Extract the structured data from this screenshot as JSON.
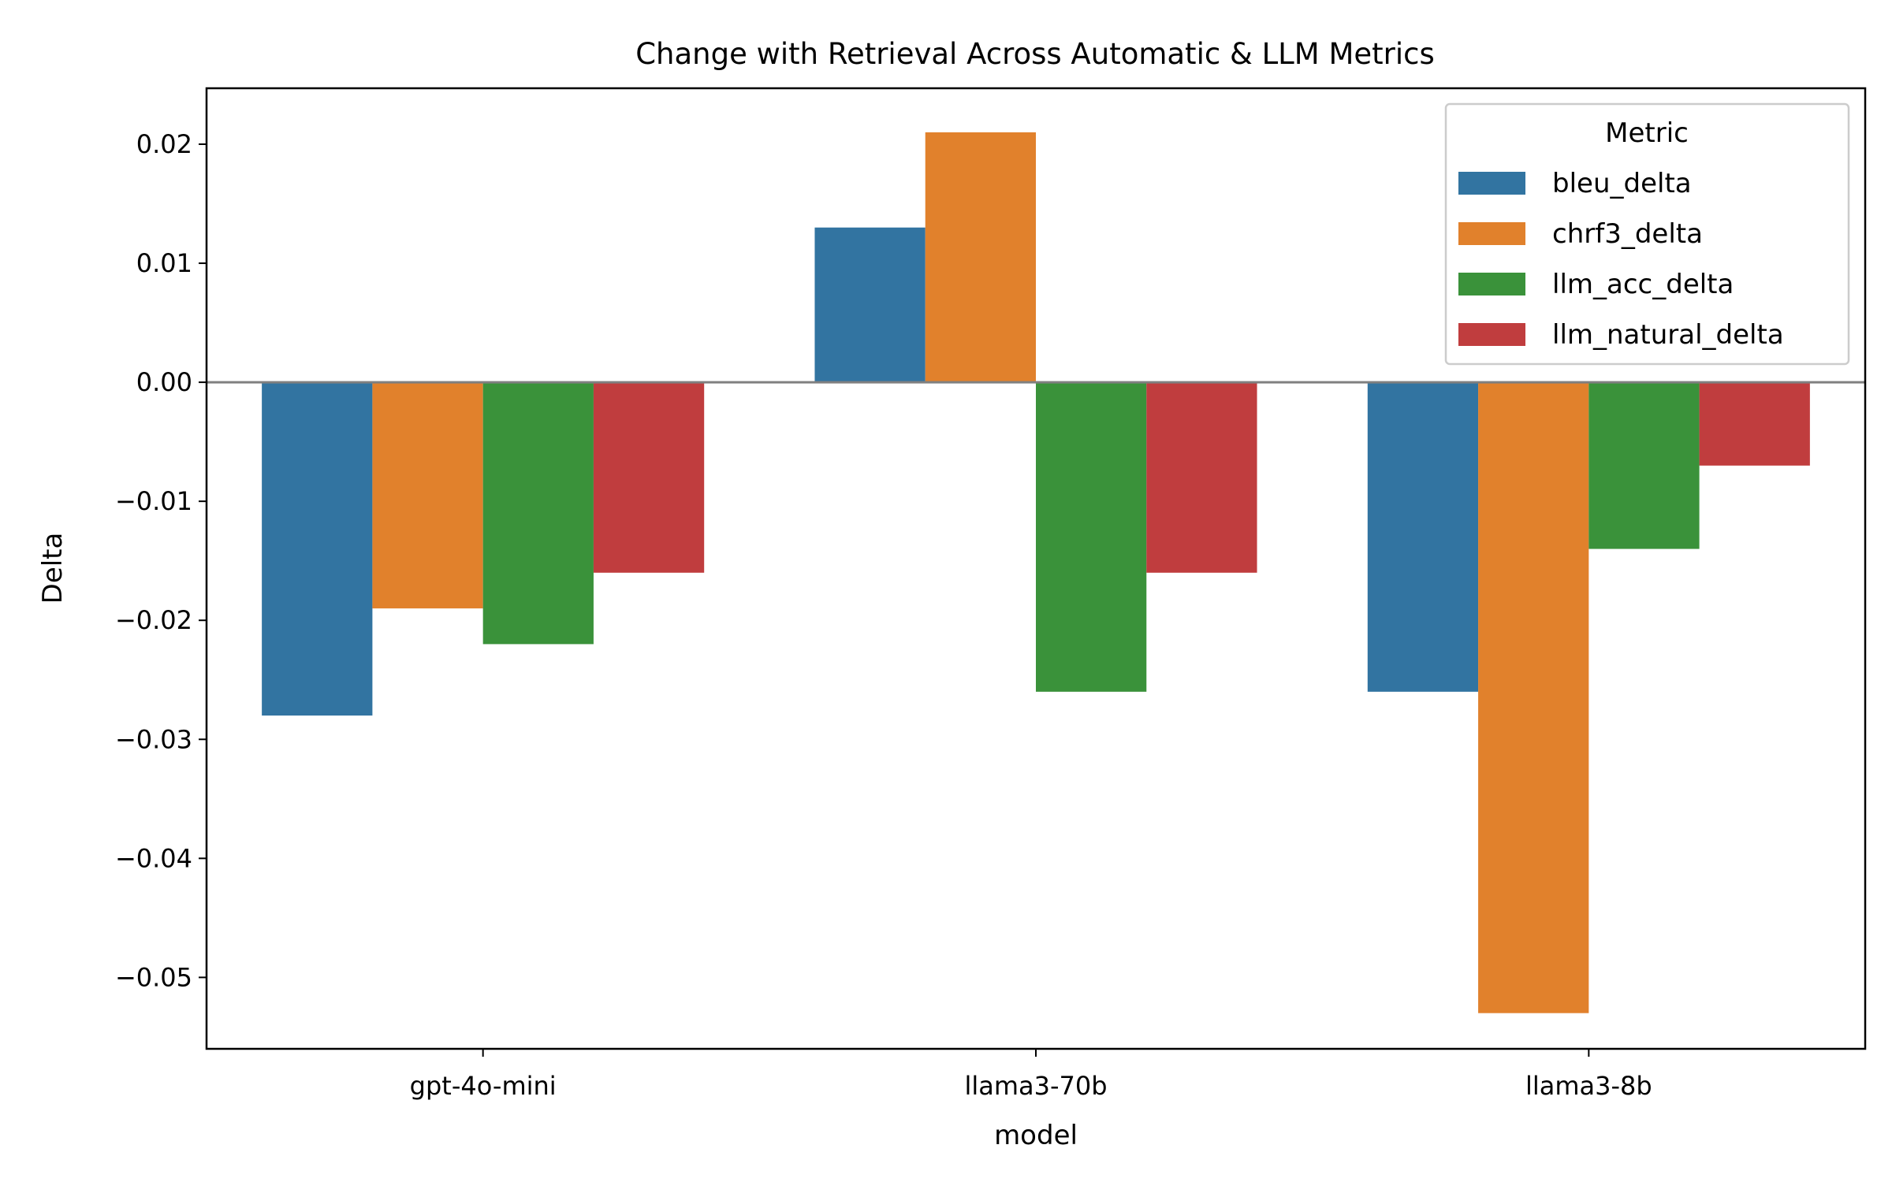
{
  "chart_data": {
    "type": "bar",
    "title": "Change with Retrieval Across Automatic & LLM Metrics",
    "xlabel": "model",
    "ylabel": "Delta",
    "categories": [
      "gpt-4o-mini",
      "llama3-70b",
      "llama3-8b"
    ],
    "series": [
      {
        "name": "bleu_delta",
        "color": "#3274a1",
        "values": [
          -0.028,
          0.013,
          -0.026
        ]
      },
      {
        "name": "chrf3_delta",
        "color": "#e1812c",
        "values": [
          -0.019,
          0.021,
          -0.053
        ]
      },
      {
        "name": "llm_acc_delta",
        "color": "#3a923a",
        "values": [
          -0.022,
          -0.026,
          -0.014
        ]
      },
      {
        "name": "llm_natural_delta",
        "color": "#c03d3e",
        "values": [
          -0.016,
          -0.016,
          -0.007
        ]
      }
    ],
    "ylim": [
      -0.056,
      0.0247
    ],
    "yticks": [
      0.02,
      0.01,
      0.0,
      -0.01,
      -0.02,
      -0.03,
      -0.04,
      -0.05
    ],
    "ytick_labels": [
      "0.02",
      "0.01",
      "0.00",
      "−0.01",
      "−0.02",
      "−0.03",
      "−0.04",
      "−0.05"
    ],
    "zero_line": true,
    "grid": false,
    "legend": {
      "title": "Metric",
      "position": "top-right"
    }
  }
}
